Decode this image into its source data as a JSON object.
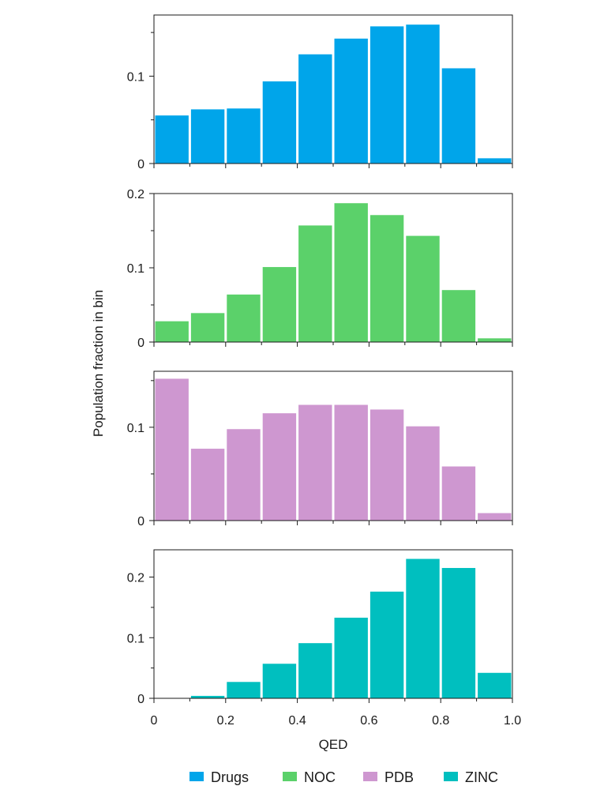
{
  "figure": {
    "ylabel": "Population fraction in bin",
    "xlabel": "QED",
    "x_ticks": [
      "0",
      "0.2",
      "0.4",
      "0.6",
      "0.8",
      "1.0"
    ]
  },
  "chart_data": [
    {
      "type": "bar",
      "series_name": "Drugs",
      "color": "#00a5ea",
      "bin_edges": [
        0,
        0.1,
        0.2,
        0.3,
        0.4,
        0.5,
        0.6,
        0.7,
        0.8,
        0.9,
        1.0
      ],
      "values": [
        0.055,
        0.062,
        0.063,
        0.094,
        0.125,
        0.143,
        0.157,
        0.159,
        0.109,
        0.006
      ],
      "ylim": [
        0,
        0.17
      ],
      "y_ticks": [
        {
          "value": 0,
          "label": "0"
        },
        {
          "value": 0.1,
          "label": "0.1"
        }
      ],
      "minor_y_ticks": [
        0.05,
        0.15
      ]
    },
    {
      "type": "bar",
      "series_name": "NOC",
      "color": "#5bd16a",
      "bin_edges": [
        0,
        0.1,
        0.2,
        0.3,
        0.4,
        0.5,
        0.6,
        0.7,
        0.8,
        0.9,
        1.0
      ],
      "values": [
        0.028,
        0.039,
        0.064,
        0.101,
        0.157,
        0.187,
        0.171,
        0.143,
        0.07,
        0.005
      ],
      "ylim": [
        0,
        0.2
      ],
      "y_ticks": [
        {
          "value": 0,
          "label": "0"
        },
        {
          "value": 0.1,
          "label": "0.1"
        },
        {
          "value": 0.2,
          "label": "0.2"
        }
      ],
      "minor_y_ticks": [
        0.05,
        0.15
      ]
    },
    {
      "type": "bar",
      "series_name": "PDB",
      "color": "#ce97d0",
      "bin_edges": [
        0,
        0.1,
        0.2,
        0.3,
        0.4,
        0.5,
        0.6,
        0.7,
        0.8,
        0.9,
        1.0
      ],
      "values": [
        0.152,
        0.077,
        0.098,
        0.115,
        0.124,
        0.124,
        0.119,
        0.101,
        0.058,
        0.008
      ],
      "ylim": [
        0,
        0.16
      ],
      "y_ticks": [
        {
          "value": 0,
          "label": "0"
        },
        {
          "value": 0.1,
          "label": "0.1"
        }
      ],
      "minor_y_ticks": [
        0.05,
        0.15
      ]
    },
    {
      "type": "bar",
      "series_name": "ZINC",
      "color": "#00bfbf",
      "bin_edges": [
        0,
        0.1,
        0.2,
        0.3,
        0.4,
        0.5,
        0.6,
        0.7,
        0.8,
        0.9,
        1.0
      ],
      "values": [
        0.0,
        0.004,
        0.027,
        0.057,
        0.091,
        0.133,
        0.176,
        0.23,
        0.215,
        0.042
      ],
      "ylim": [
        0,
        0.245
      ],
      "y_ticks": [
        {
          "value": 0,
          "label": "0"
        },
        {
          "value": 0.1,
          "label": "0.1"
        },
        {
          "value": 0.2,
          "label": "0.2"
        }
      ],
      "minor_y_ticks": [
        0.05,
        0.15
      ]
    }
  ],
  "legend": {
    "placement": "bottom",
    "items": [
      {
        "label": "Drugs",
        "color": "#00a5ea"
      },
      {
        "label": "NOC",
        "color": "#5bd16a"
      },
      {
        "label": "PDB",
        "color": "#ce97d0"
      },
      {
        "label": "ZINC",
        "color": "#00bfbf"
      }
    ]
  }
}
